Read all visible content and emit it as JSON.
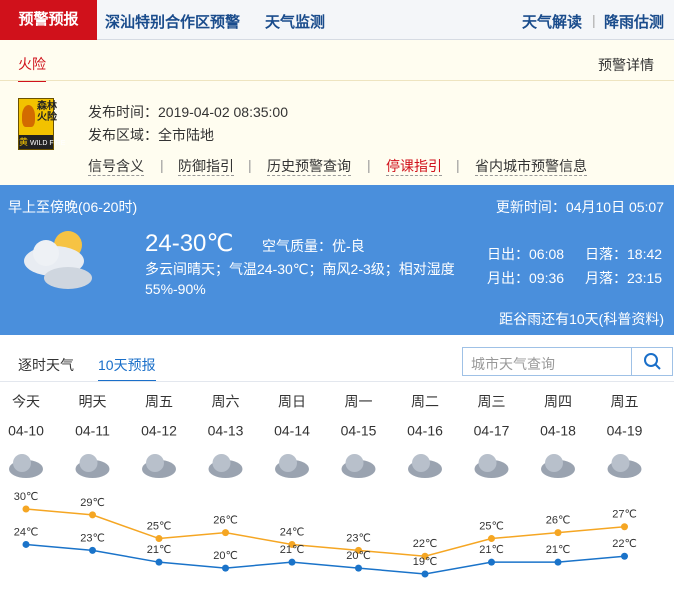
{
  "nav": {
    "active": "预警预报",
    "items": [
      "深汕特别合作区预警",
      "天气监测"
    ],
    "right": [
      "天气解读",
      "降雨估测"
    ]
  },
  "alert": {
    "tab": "火险",
    "detail": "预警详情",
    "icon": {
      "lines": [
        "森林",
        "火险"
      ],
      "level": "黄",
      "en": "WILD FIRE"
    },
    "time_label": "发布时间：",
    "time": "2019-04-02 08:35:00",
    "area_label": "发布区域：",
    "area": "全市陆地",
    "links": [
      "信号含义",
      "防御指引",
      "历史预警查询",
      "停课指引",
      "省内城市预警信息"
    ]
  },
  "today": {
    "period": "早上至傍晚(06-20时)",
    "update_label": "更新时间：",
    "update": "04月10日 05:07",
    "temp": "24-30℃",
    "aqi": "空气质量：优-良",
    "desc": "多云间晴天；气温24-30℃；南风2-3级；相对湿度55%-90%",
    "sunrise": "日出：06:08",
    "sunset": "日落：18:42",
    "moonrise": "月出：09:36",
    "moonset": "月落：23:15",
    "note": "距谷雨还有10天(科普资料)"
  },
  "tabs": [
    "逐时天气",
    "10天预报"
  ],
  "search": "城市天气查询",
  "forecast": {
    "days": [
      "今天",
      "明天",
      "周五",
      "周六",
      "周日",
      "周一",
      "周二",
      "周三",
      "周四",
      "周五"
    ],
    "dates": [
      "04-10",
      "04-11",
      "04-12",
      "04-13",
      "04-14",
      "04-15",
      "04-16",
      "04-17",
      "04-18",
      "04-19"
    ],
    "high": {
      "color": "#f5a623",
      "values": [
        30,
        29,
        25,
        26,
        24,
        23,
        22,
        25,
        26,
        27
      ],
      "value_labels": [
        "30℃",
        "29℃",
        "25℃",
        "26℃",
        "24℃",
        "23℃",
        "22℃",
        "25℃",
        "26℃",
        "27℃"
      ]
    },
    "low": {
      "color": "#1a73c9",
      "values": [
        24,
        23,
        21,
        20,
        21,
        20,
        19,
        21,
        21,
        22
      ],
      "value_labels": [
        "24℃",
        "23℃",
        "21℃",
        "20℃",
        "21℃",
        "20℃",
        "19℃",
        "21℃",
        "21℃",
        "22℃"
      ]
    }
  }
}
